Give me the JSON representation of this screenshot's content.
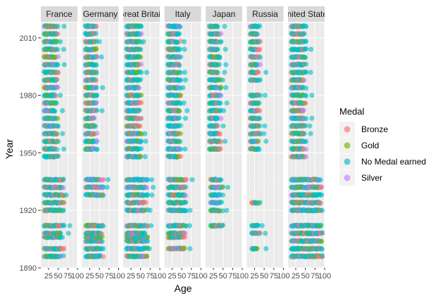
{
  "chart_data": {
    "type": "scatter",
    "facet_by": "Team",
    "panels": [
      "France",
      "Germany",
      "Great Britain",
      "Italy",
      "Japan",
      "Russia",
      "United States"
    ],
    "xlabel": "Age",
    "ylabel": "Year",
    "xlim": [
      5,
      100
    ],
    "ylim": [
      1890,
      2018
    ],
    "xticks": [
      25,
      50,
      75,
      100
    ],
    "xtick_labels": [
      "25",
      "50",
      "75",
      "100"
    ],
    "yticks": [
      1890,
      1920,
      1950,
      1980,
      2010
    ],
    "ytick_labels": [
      "1890",
      "1920",
      "1950",
      "1980",
      "2010"
    ],
    "grid": true,
    "legend": {
      "title": "Medal",
      "position": "right",
      "entries": [
        {
          "label": "Bronze",
          "color": "#F8766D"
        },
        {
          "label": "Gold",
          "color": "#7CAE00"
        },
        {
          "label": "No Medal earned",
          "color": "#00BFC4"
        },
        {
          "label": "Silver",
          "color": "#C77CFF"
        }
      ]
    },
    "olympic_years": [
      1896,
      1900,
      1904,
      1906,
      1908,
      1912,
      1920,
      1924,
      1928,
      1932,
      1936,
      1948,
      1952,
      1956,
      1960,
      1964,
      1968,
      1972,
      1976,
      1980,
      1984,
      1988,
      1992,
      1994,
      1996,
      1998,
      2000,
      2002,
      2004,
      2006,
      2008,
      2010,
      2012,
      2014,
      2016
    ],
    "panel_data": [
      {
        "team": "France",
        "age_min": 14,
        "age_max": 50,
        "age_min_early": 14,
        "age_max_early": 65,
        "absent_years": [
          1904,
          1994,
          1998,
          2002,
          2006,
          2010,
          2014
        ]
      },
      {
        "team": "Germany",
        "age_min": 14,
        "age_max": 45,
        "age_min_early": 15,
        "age_max_early": 60,
        "absent_years": [
          1920,
          1924,
          1948,
          1994,
          1998,
          2002,
          2006,
          2010,
          2014
        ]
      },
      {
        "team": "Great Britain",
        "age_min": 14,
        "age_max": 52,
        "age_min_early": 14,
        "age_max_early": 68,
        "absent_years": [
          1994,
          1998,
          2002,
          2006,
          2010,
          2014
        ]
      },
      {
        "team": "Italy",
        "age_min": 14,
        "age_max": 48,
        "age_min_early": 15,
        "age_max_early": 62,
        "absent_years": [
          1896,
          1904,
          1994,
          1998,
          2002,
          2006,
          2010,
          2014
        ]
      },
      {
        "team": "Japan",
        "age_min": 15,
        "age_max": 45,
        "age_min_early": 18,
        "age_max_early": 50,
        "absent_years": [
          1896,
          1900,
          1904,
          1906,
          1908,
          1948,
          1994,
          1998,
          2002,
          2006,
          2010,
          2014
        ]
      },
      {
        "team": "Russia",
        "age_min": 14,
        "age_max": 40,
        "age_min_early": 18,
        "age_max_early": 40,
        "absent_years": [
          1896,
          1904,
          1906,
          1920,
          1928,
          1932,
          1936,
          1948,
          1984,
          1994,
          1998,
          2002,
          2006,
          2010,
          2014
        ]
      },
      {
        "team": "United States",
        "age_min": 14,
        "age_max": 52,
        "age_min_early": 14,
        "age_max_early": 95,
        "absent_years": [
          1906,
          1994,
          1998,
          2002,
          2006,
          2010,
          2014
        ]
      }
    ]
  },
  "strips": [
    "France",
    "Germany",
    "Great Britain",
    "Italy",
    "Japan",
    "Russia",
    "United States"
  ],
  "axes": {
    "y_title": "Year",
    "x_title": "Age",
    "y_ticks": [
      "1890",
      "1920",
      "1950",
      "1980",
      "2010"
    ],
    "x_ticks": [
      "25",
      "50",
      "75",
      "100"
    ]
  },
  "legend": {
    "title": "Medal",
    "items": [
      "Bronze",
      "Gold",
      "No Medal earned",
      "Silver"
    ]
  }
}
